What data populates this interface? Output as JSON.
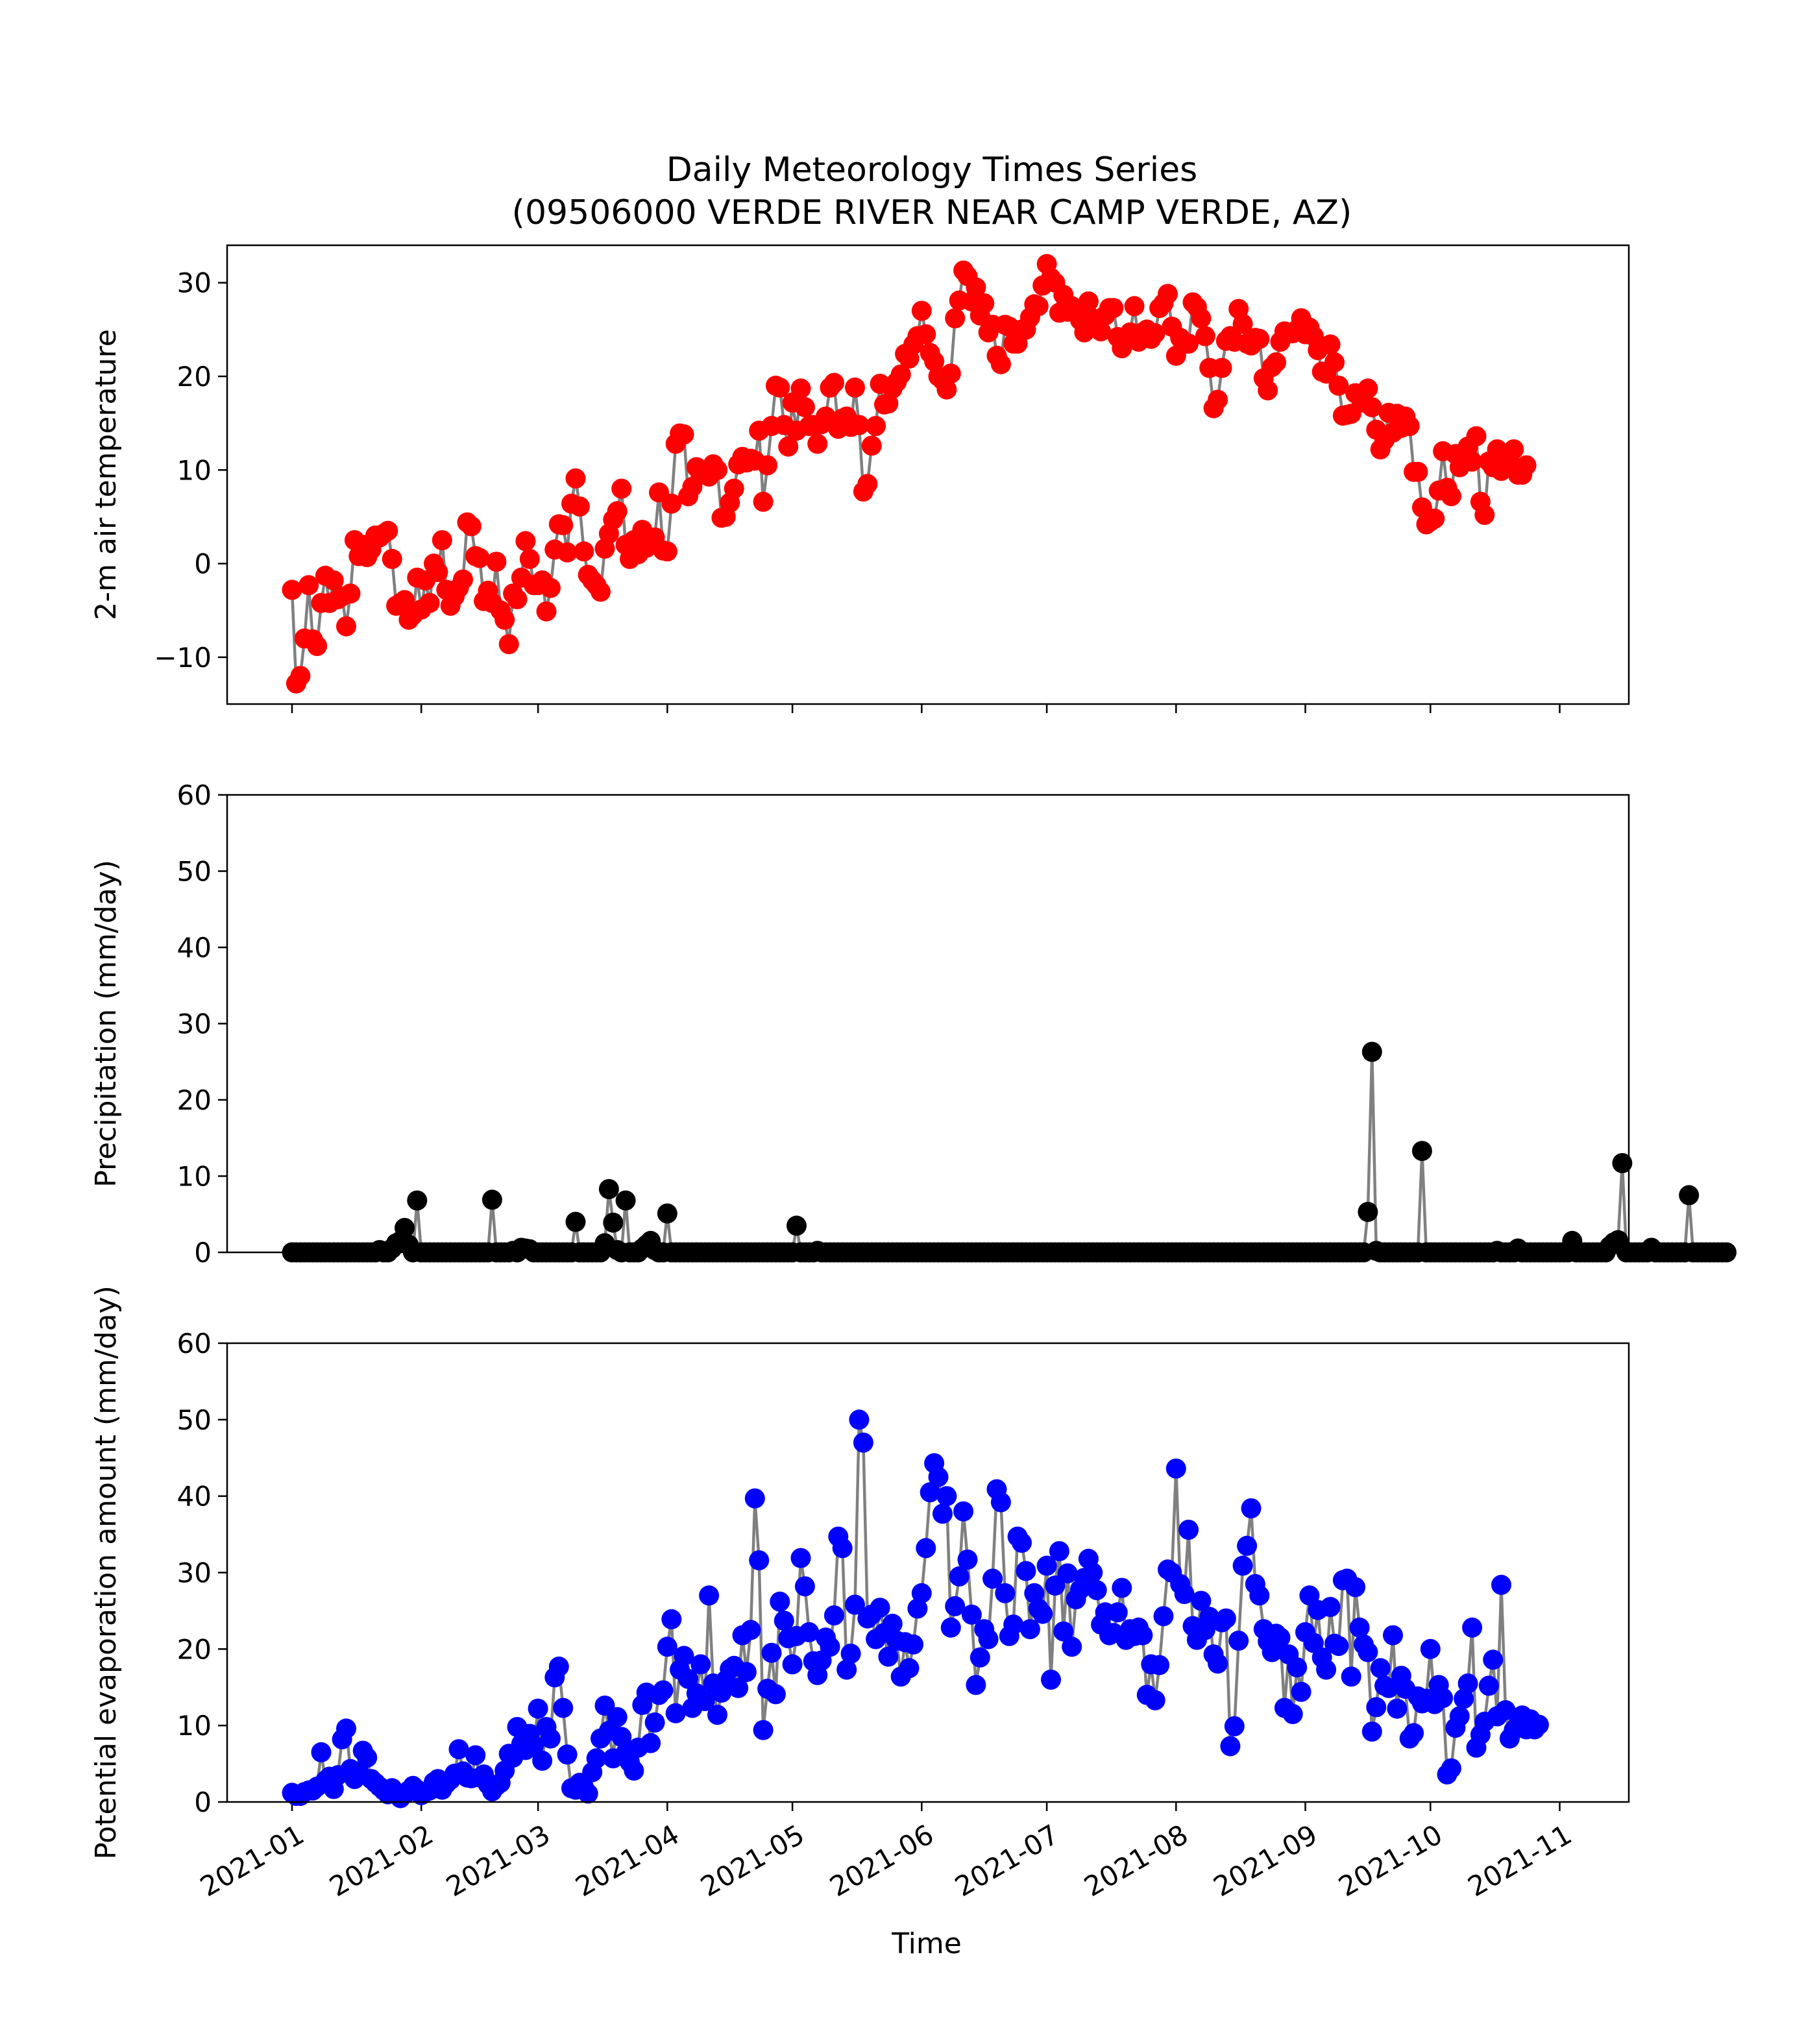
{
  "chart_data": {
    "type": "line",
    "title": "Daily Meteorology Times Series",
    "subtitle": "(09506000 VERDE RIVER NEAR CAMP VERDE, AZ)",
    "xlabel": "Time",
    "x_ticks": [
      "2021-01",
      "2021-02",
      "2021-03",
      "2021-04",
      "2021-05",
      "2021-06",
      "2021-07",
      "2021-08",
      "2021-09",
      "2021-10",
      "2021-11"
    ],
    "x_tick_days": [
      0,
      31,
      59,
      90,
      120,
      151,
      181,
      212,
      243,
      273,
      304
    ],
    "panels": [
      {
        "name": "temperature",
        "ylabel": "2-m air temperature",
        "ylim": [
          -15,
          34
        ],
        "yticks": [
          30,
          20,
          10,
          0,
          -10
        ],
        "ytick_labels": [
          "30",
          "20",
          "10",
          "0",
          "−10"
        ],
        "marker_color": "#ff0000",
        "line_color": "#808080",
        "start_day": 0,
        "values": [
          -2.8,
          -12.8,
          -12,
          -8,
          -2.3,
          -8.1,
          -8.8,
          -4.2,
          -1.3,
          -4.2,
          -1.8,
          -3.8,
          -3.5,
          -6.7,
          -3.2,
          2.5,
          0.8,
          2,
          0.7,
          1.5,
          3,
          2.8,
          3.2,
          3.5,
          0.5,
          -4.5,
          -4.2,
          -3.9,
          -6,
          -5.5,
          -1.5,
          -4.9,
          -1.8,
          -4.2,
          0,
          -0.9,
          2.5,
          -2.8,
          -4.5,
          -3.5,
          -2.6,
          -1.7,
          4.4,
          4,
          0.8,
          0.6,
          -4,
          -2.9,
          -4.2,
          0.2,
          -5,
          -6,
          -8.6,
          -3.2,
          -3.8,
          -1.5,
          2.4,
          0.5,
          -2.3,
          -2.3,
          -1.8,
          -5.1,
          -2.6,
          1.5,
          4.2,
          4.1,
          1.2,
          6.4,
          9.1,
          6.1,
          1.3,
          -1.2,
          -1.8,
          -2.3,
          -3,
          1.6,
          3.2,
          4.7,
          5.6,
          8,
          2,
          0.5,
          2.5,
          1,
          3.6,
          1.7,
          2.5,
          2.8,
          7.6,
          1.4,
          1.3,
          6.4,
          12.8,
          13.9,
          13.8,
          7.2,
          8.2,
          10.3,
          9.5,
          9.8,
          9.3,
          10.6,
          10,
          4.9,
          5,
          6.5,
          8,
          10.6,
          11.4,
          10.8,
          11.2,
          11,
          14.2,
          6.6,
          10.5,
          14.7,
          19,
          18.8,
          14.8,
          12.5,
          17.2,
          14.2,
          18.7,
          16.7,
          14.7,
          14.8,
          12.8,
          14.9,
          15.7,
          18.8,
          19.3,
          14.4,
          15.5,
          15.7,
          14.6,
          18.8,
          14.8,
          7.7,
          8.5,
          12.6,
          14.7,
          19.2,
          17,
          17.1,
          18.7,
          19.4,
          20.2,
          22.4,
          21.9,
          23.4,
          24.3,
          27,
          24.5,
          22.5,
          21.6,
          20,
          19.6,
          18.6,
          20.3,
          26.2,
          28.1,
          31.3,
          30.7,
          28,
          29.5,
          26.5,
          27.8,
          24.7,
          25.5,
          22.2,
          21.3,
          25.5,
          25.3,
          23.5,
          23.5,
          25,
          25,
          26.3,
          27.7,
          27.5,
          29.7,
          32,
          30.5,
          30,
          26.8,
          28.7,
          26.9,
          27.5,
          27,
          26,
          24.7,
          28,
          26.2,
          26,
          24.8,
          26.5,
          27.3,
          27.3,
          24.2,
          23,
          24,
          24.7,
          27.5,
          23.7,
          24.7,
          25,
          24,
          24.6,
          27.3,
          27.8,
          28.8,
          25.3,
          22.2,
          24.1,
          23.5,
          23.5,
          27.9,
          27.4,
          26.2,
          24.3,
          20.9,
          16.6,
          17.5,
          20.9,
          23.8,
          24.3,
          23.7,
          27.2,
          25.6,
          23.5,
          23.3,
          24.1,
          24,
          19.8,
          18.5,
          21,
          21.5,
          23.7,
          24.8,
          24.6,
          24.6,
          25,
          26.2,
          24.5,
          25.2,
          24.3,
          22.8,
          20.5,
          20.3,
          23.4,
          21.5,
          19,
          15.8,
          15.9,
          16,
          18.2,
          17.8,
          17.2,
          18.7,
          16.7,
          14.3,
          12.2,
          13.2,
          16.1,
          14,
          16,
          14.5,
          15.7,
          14.7,
          9.8,
          9.8,
          6,
          4.2,
          4.5,
          4.8,
          7.8,
          12,
          8.1,
          7.2,
          11.7,
          10.3,
          11.3,
          12.5,
          10.9,
          13.6,
          6.6,
          5.2,
          10.9,
          10.3,
          12.2,
          9.9,
          11,
          10.8,
          12.2,
          9.5,
          9.5,
          10.5
        ]
      },
      {
        "name": "precipitation",
        "ylabel": "Precipitation (mm/day)",
        "ylim": [
          0,
          60
        ],
        "yticks": [
          60,
          50,
          40,
          30,
          20,
          10,
          0
        ],
        "ytick_labels": [
          "60",
          "50",
          "40",
          "30",
          "20",
          "10",
          "0"
        ],
        "marker_color": "#000000",
        "line_color": "#808080",
        "start_day": 0,
        "values": [
          0,
          0,
          0,
          0,
          0,
          0,
          0,
          0,
          0,
          0,
          0,
          0,
          0,
          0,
          0,
          0,
          0,
          0,
          0,
          0,
          0,
          0.3,
          0,
          0,
          0.5,
          1.2,
          1.5,
          3.2,
          1,
          0,
          6.8,
          0,
          0,
          0,
          0,
          0,
          0,
          0,
          0,
          0,
          0,
          0,
          0,
          0,
          0,
          0,
          0,
          0,
          6.9,
          0,
          0,
          0,
          0,
          0.2,
          0,
          0.6,
          0.5,
          0.4,
          0,
          0,
          0,
          0,
          0,
          0,
          0,
          0,
          0,
          0,
          4,
          0,
          0,
          0,
          0,
          0,
          0,
          1.2,
          8.3,
          3.9,
          0.3,
          0,
          6.8,
          0,
          0,
          0,
          0.5,
          1,
          1.5,
          0.3,
          0,
          0,
          5.1,
          0,
          0,
          0,
          0,
          0,
          0,
          0,
          0,
          0,
          0,
          0,
          0,
          0,
          0,
          0,
          0,
          0,
          0,
          0,
          0,
          0,
          0,
          0,
          0,
          0,
          0,
          0,
          0,
          0,
          0,
          3.5,
          0,
          0,
          0,
          0,
          0.2,
          0,
          0,
          0,
          0,
          0,
          0,
          0,
          0,
          0,
          0,
          0,
          0,
          0,
          0,
          0,
          0,
          0,
          0,
          0,
          0,
          0,
          0,
          0,
          0,
          0,
          0,
          0,
          0,
          0,
          0,
          0,
          0,
          0,
          0,
          0,
          0,
          0,
          0,
          0,
          0,
          0,
          0,
          0,
          0,
          0,
          0,
          0,
          0,
          0,
          0,
          0,
          0,
          0,
          0,
          0,
          0,
          0,
          0,
          0,
          0,
          0,
          0,
          0,
          0,
          0,
          0,
          0,
          0,
          0,
          0,
          0,
          0,
          0,
          0,
          0,
          0,
          0,
          0,
          0,
          0,
          0,
          0,
          0,
          0,
          0,
          0,
          0,
          0,
          0,
          0,
          0,
          0,
          0,
          0,
          0,
          0,
          0,
          0,
          0,
          0,
          0,
          0,
          0,
          0,
          0,
          0,
          0,
          0,
          0,
          0,
          0,
          0,
          0,
          0,
          0,
          0,
          0,
          0,
          0,
          0,
          0,
          0,
          0,
          0,
          0,
          0,
          0,
          0,
          0,
          0,
          0,
          5.3,
          26.3,
          0.2,
          0,
          0,
          0,
          0,
          0,
          0,
          0,
          0,
          0,
          0,
          13.3,
          0,
          0,
          0,
          0,
          0,
          0,
          0,
          0,
          0,
          0,
          0,
          0,
          0,
          0,
          0,
          0,
          0,
          0.2,
          0,
          0,
          0,
          0,
          0.5,
          0,
          0,
          0,
          0,
          0,
          0,
          0,
          0,
          0,
          0,
          0,
          0,
          1.5,
          0,
          0,
          0,
          0,
          0,
          0,
          0,
          0,
          0.8,
          1.3,
          1.6,
          11.7,
          0,
          0,
          0,
          0,
          0,
          0,
          0.6,
          0,
          0,
          0,
          0,
          0,
          0,
          0,
          0,
          7.5,
          0,
          0,
          0,
          0,
          0,
          0,
          0,
          0,
          0
        ]
      },
      {
        "name": "pet",
        "ylabel": "Potential evaporation amount (mm/day)",
        "ylim": [
          0,
          60
        ],
        "yticks": [
          60,
          50,
          40,
          30,
          20,
          10,
          0
        ],
        "ytick_labels": [
          "60",
          "50",
          "40",
          "30",
          "20",
          "10",
          "0"
        ],
        "marker_color": "#0000ff",
        "line_color": "#808080",
        "start_day": 0,
        "values": [
          1.2,
          0.8,
          0.8,
          1.3,
          1.5,
          1.5,
          2,
          6.5,
          2.8,
          3.3,
          1.7,
          3.5,
          8.2,
          9.6,
          4.3,
          3,
          4,
          6.7,
          5.8,
          3,
          2.5,
          2,
          1.5,
          1,
          1.8,
          1,
          0.5,
          1,
          1.5,
          2.1,
          1.6,
          0.9,
          1.3,
          1.5,
          2.6,
          3,
          1.6,
          2.4,
          2.9,
          3.7,
          6.9,
          4,
          3.2,
          3.1,
          6.1,
          3.2,
          3.6,
          2.3,
          1.4,
          2.1,
          2.5,
          4.1,
          6.3,
          5.8,
          9.8,
          7.6,
          6.8,
          8.9,
          7.4,
          12.2,
          5.4,
          9.8,
          8.3,
          16.3,
          17.7,
          12.3,
          6.2,
          1.8,
          1.6,
          2.5,
          1.9,
          1.1,
          3.9,
          5.7,
          8.3,
          12.6,
          9.3,
          5.7,
          11.1,
          8.5,
          6.4,
          5.2,
          4.1,
          7.1,
          12.7,
          14.3,
          7.7,
          10.4,
          14,
          14.6,
          20.3,
          23.9,
          11.6,
          17.3,
          19.1,
          16.1,
          12.3,
          14.2,
          18,
          13.2,
          27,
          15.5,
          11.4,
          14.3,
          15.9,
          17.4,
          17.8,
          14.9,
          21.8,
          17,
          22.5,
          39.7,
          31.6,
          9.4,
          14.8,
          19.5,
          14.1,
          26.2,
          23.7,
          21.4,
          18,
          21.7,
          31.9,
          28.2,
          22.2,
          18.4,
          16.6,
          18.5,
          21.5,
          20.3,
          24.4,
          34.7,
          33.2,
          17.3,
          19.4,
          25.8,
          50,
          47,
          24,
          24.5,
          21.3,
          25.4,
          22.1,
          19,
          23.3,
          21.1,
          16.4,
          20.9,
          17.5,
          20.6,
          25.3,
          27.3,
          33.2,
          40.5,
          44.3,
          42.5,
          37.7,
          40,
          22.8,
          25.6,
          29.5,
          38,
          31.7,
          24.5,
          15.3,
          18.9,
          22.6,
          21.3,
          29.2,
          40.9,
          39.2,
          27.3,
          21.7,
          23.2,
          34.7,
          33.9,
          30.2,
          22.6,
          27.3,
          25.3,
          24.6,
          30.9,
          16,
          28.3,
          32.8,
          22.3,
          29.9,
          20.3,
          26.5,
          27.8,
          29.3,
          31.8,
          30,
          27.7,
          23.2,
          24.8,
          21.8,
          22.1,
          24.8,
          28,
          21.2,
          22.6,
          21.7,
          22.8,
          21.8,
          14,
          18,
          13.3,
          17.9,
          24.3,
          30.4,
          30,
          43.6,
          28.5,
          27.2,
          35.6,
          23,
          21.2,
          26.3,
          22.5,
          24.2,
          19.3,
          18.1,
          23.5,
          24,
          7.3,
          9.9,
          21.1,
          30.9,
          33.5,
          38.4,
          28.5,
          27,
          22.6,
          21,
          19.6,
          22,
          21.5,
          12.3,
          19.3,
          11.5,
          17.6,
          14.4,
          22.2,
          27,
          20.8,
          25.1,
          18.9,
          17.3,
          25.5,
          20.7,
          20.4,
          29,
          29.2,
          16.4,
          28.1,
          22.8,
          20.6,
          19.6,
          9.2,
          12.4,
          17.5,
          15.2,
          14.9,
          21.8,
          12.2,
          16.5,
          14.8,
          8.3,
          9,
          13.8,
          12.9,
          13.5,
          20,
          12.8,
          15.3,
          13.6,
          3.6,
          4.4,
          9.7,
          11.2,
          13.5,
          15.5,
          22.8,
          7.1,
          8.8,
          10.5,
          15.2,
          18.6,
          11.2,
          28.4,
          12,
          8.3,
          9.4,
          10.1,
          11.3,
          9.5,
          10.8,
          9.5,
          10.1
        ]
      }
    ]
  }
}
